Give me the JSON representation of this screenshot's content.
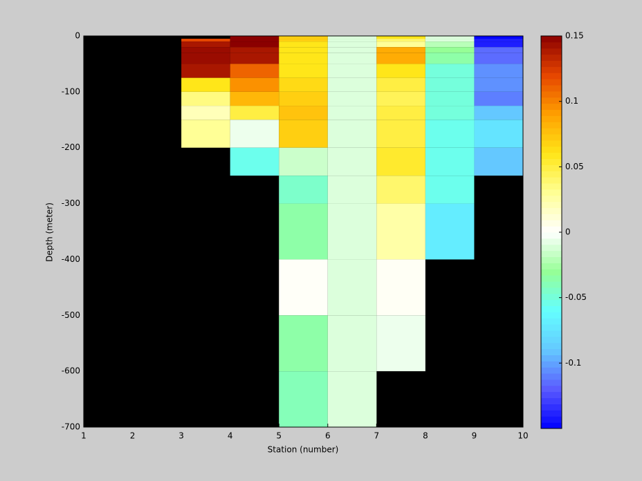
{
  "chart_data": {
    "type": "heatmap",
    "xlabel": "Station (number)",
    "ylabel": "Depth (meter)",
    "x": [
      1,
      2,
      3,
      4,
      5,
      6,
      7,
      8,
      9,
      10
    ],
    "y": [
      0,
      -5,
      -10,
      -20,
      -30,
      -50,
      -75,
      -100,
      -125,
      -150,
      -200,
      -250,
      -300,
      -400,
      -500,
      -600,
      -700
    ],
    "values": [
      [
        null,
        null,
        null,
        null,
        null,
        null,
        null,
        null,
        null,
        null,
        null,
        null,
        null,
        null,
        null,
        null
      ],
      [
        null,
        null,
        null,
        null,
        null,
        null,
        null,
        null,
        null,
        null,
        null,
        null,
        null,
        null,
        null,
        null
      ],
      [
        null,
        0.12,
        0.14,
        0.145,
        0.145,
        0.14,
        0.06,
        0.035,
        0.02,
        0.03,
        null,
        null,
        null,
        null,
        null,
        null
      ],
      [
        0.15,
        0.15,
        0.15,
        0.14,
        0.14,
        0.11,
        0.095,
        0.08,
        0.05,
        -0.005,
        -0.055,
        null,
        null,
        null,
        null,
        null
      ],
      [
        0.07,
        0.07,
        0.06,
        0.06,
        0.06,
        0.06,
        0.065,
        0.07,
        0.075,
        0.07,
        -0.015,
        -0.045,
        -0.035,
        0.002,
        -0.035,
        -0.04
      ],
      [
        -0.01,
        -0.01,
        -0.01,
        -0.01,
        -0.01,
        -0.01,
        -0.01,
        -0.01,
        -0.01,
        -0.01,
        -0.01,
        -0.01,
        -0.01,
        -0.01,
        -0.01,
        -0.01
      ],
      [
        0.06,
        0.04,
        0.03,
        0.085,
        0.085,
        0.06,
        0.05,
        0.045,
        0.05,
        0.05,
        0.055,
        0.04,
        0.025,
        0.003,
        -0.005,
        null
      ],
      [
        -0.01,
        -0.01,
        -0.02,
        -0.03,
        -0.035,
        -0.05,
        -0.05,
        -0.05,
        -0.05,
        -0.055,
        -0.055,
        -0.055,
        -0.07,
        null,
        null,
        null
      ],
      [
        -0.15,
        -0.14,
        -0.14,
        -0.115,
        -0.115,
        -0.105,
        -0.105,
        -0.11,
        -0.09,
        -0.075,
        -0.09,
        null,
        null,
        null,
        null,
        null
      ]
    ],
    "xlim": [
      1,
      10
    ],
    "xticks": [
      1,
      2,
      3,
      4,
      5,
      6,
      7,
      8,
      9,
      10
    ],
    "ylim": [
      -700,
      0
    ],
    "yticks": [
      0,
      -100,
      -200,
      -300,
      -400,
      -500,
      -600,
      -700
    ],
    "clim": [
      -0.15,
      0.15
    ],
    "cticks": [
      0.15,
      0.1,
      0.05,
      0,
      -0.05,
      -0.1
    ],
    "colormap": [
      "#0000ff",
      "#5a5aff",
      "#64c8ff",
      "#64ffff",
      "#96ff96",
      "#ffffff",
      "#ffff96",
      "#ffe619",
      "#ffa000",
      "#e64600",
      "#8b0000"
    ],
    "nan_color": "#000000"
  }
}
